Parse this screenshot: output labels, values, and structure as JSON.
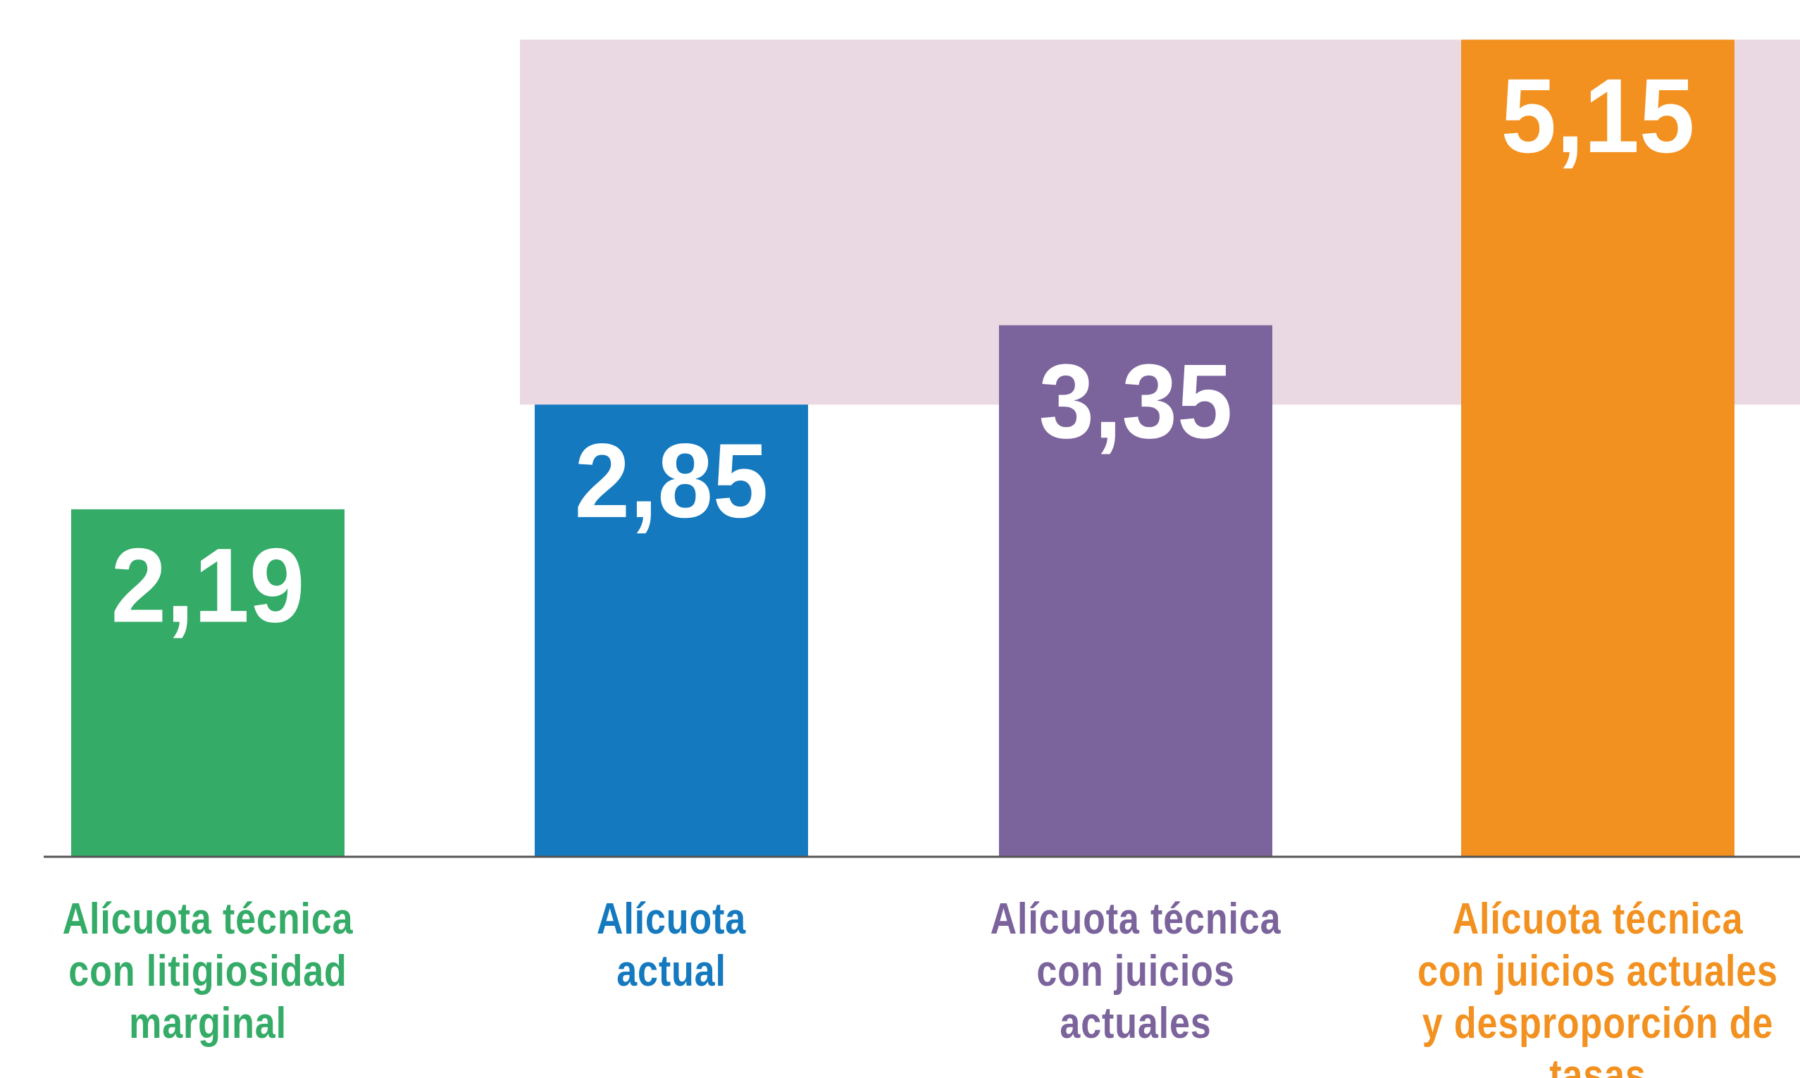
{
  "chart_data": {
    "type": "bar",
    "categories": [
      "Alícuota técnica\ncon litigiosidad\nmarginal",
      "Alícuota\nactual",
      "Alícuota técnica\ncon juicios\nactuales",
      "Alícuota técnica\ncon juicios actuales\ny desproporción de\ntasas"
    ],
    "values": [
      2.19,
      2.85,
      3.35,
      5.15
    ],
    "value_labels": [
      "2,19",
      "2,85",
      "3,35",
      "5,15"
    ],
    "colors": [
      "#34ab67",
      "#1479be",
      "#7b639c",
      "#f29120"
    ],
    "ylim": [
      0,
      5.4
    ],
    "highlight_band": {
      "from": 2.85,
      "to": 5.15,
      "color": "#ead9e3"
    }
  }
}
